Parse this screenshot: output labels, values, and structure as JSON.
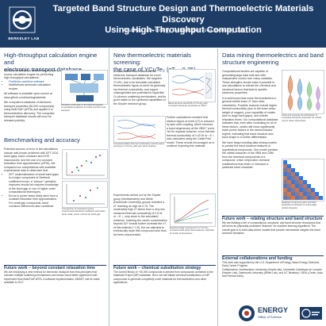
{
  "header": {
    "title_line1": "Targeted Band Structure Design and Thermoelectric Materials Discovery",
    "title_line2": "Using High-Throughput Computation",
    "authors": "Anubhav Jain, Energy Technologies Area, Berkeley Lab",
    "logo_text": "BERKELEY LAB"
  },
  "col1": {
    "heading1_a": "High-throughput calculation engine and",
    "heading1_b": "electronic transport database",
    "intro": "We have developed a state-of-the-art, open-source calculation engine for performing high-throughput calculations:",
    "bullet1": "FireWorks workflow software",
    "bullet2": "MatMethods automatic calculation recipes",
    "avail": "All software is available open-source at www.github.com/hackingmaterials",
    "calc": "We computed a database of electronic transport properties (50,000 compounds) using BoltzTraP (sRTA) and applied it to thermoelectrics discovery. The computed transport database results will soon be released publicly.",
    "fig1_caption": "Workflow schematic of the high-throughput computational pipeline for band structure and transport",
    "heading2": "Benchmarking and accuracy",
    "bench": "Potential sources of error in the calculations include well-known problems with DFT-GGA band gaps, band curvature and DOS inaccuracies, and the use of a constant relaxation time approximation (cRTA). We compared our computations with available experimental data to determine that:",
    "b1": "DFT underestimation of small band gaps is a major component of Seebeck coefficient errors; a \"scissor\" operation improves results but requires knowledge of the band gap or use of higher-order computational techniques.",
    "b2": "Errors in power factor likely stem from a constant relaxation time approximation. For small gap compounds, band curvature differences also contribute.",
    "fig2_caption": "Comparison of computed versus experimental Seebeck coefficient and power factor data; points colored by band gap",
    "future_h": "Future work – beyond constant relaxation time",
    "future_p": "We are employing a new method for electronic transport from first-principles that includes multiple scattering mechanisms and shows much better agreement with experiment than BoltzTraP sRTA. A software implementation, AMSET, will be made available in 2017."
  },
  "col2": {
    "heading_a": "New thermoelectric materials screening:",
    "heading_b": "the case of YCuTe₂ (zT ~ 0.75)",
    "p1": "A collaborative effort examined the electronic transport database for novel thermoelectric candidates. We targeted YCuTe₂ due to its favorable calculated thermoelectric figure-of-merit, its generally low thermal conductivity, and copper chalcogenides and potential for liquid-like Cu phonon scattering mechanisms, and its good match to the synthesis capabilities of the Snyder research group.",
    "cap1": "Band structure and DOS of YCuTe₂ with computed transport properties at 700 K",
    "p2": "Further calculations revealed that electron figure-of-merit (zT) is reduced by spin-orbit coupling, which removes a band degeneracy at the VBM Γ point. Yet Sn dopants however, a low thermal thermal conductivity of 0.43 W m⁻¹ K⁻¹ was calculated using the Cahill-Pohl model. These results encouraged us to continue exploring this material.",
    "cap2": "Computed lattice thermal conductivity and the band structure of YCuTe₂ with spin-orbit coupling",
    "p3": "Experiments carried out by the Snyder group (Northwestern) and White (Dartmouth University) groups revealed a zT reaching as high as 0.75. The moderately high zT stems from a very low measured thermal conductivity of 0.5 W m⁻¹ K⁻¹, very close to the calculated minimum, lowering the carrier concentration beyond 10²⁰ should further increase the zT of this material (~1.5), but our attempts to extrinsically dope this compound have thus far been unsuccessful.",
    "cap3": "Experimentally measured zT of YCuTe₂ compared with other thermoelectric materials at similar temperatures",
    "future_h": "Future work – chemical substitution strategy",
    "future_p": "The current library of ~50,000 compounds is derived from compounds contained in the Materials Project (MP) database. Next, we will initiate chemical substitutions on MP compounds to generate completely novel materials for thermoelectrics and other applications."
  },
  "col3": {
    "heading_a": "Data mining thermoelectrics and band",
    "heading_b": "structure engineering",
    "p1": "Computational studies are capable of generating large data sets and offer independent control over many variables. These strengths should make it possible to use calculations to extract the chemical and structural factors that lead to specific electronic properties.",
    "p2": "It is well known that some thermoelectrics in general exhibit lower zT than other chemistries. Possible reasons include higher thermal conductivity (due to the lower anion weight of oxygen), poor dopability of oxides (due to large band gaps), and shorter relaxation times. Our computational database indicates that, even after controlling for all of these factors, oxides still show significantly lower power factors in the semiconductor regime, indicating that band structure and band shape is a further differentiator.",
    "p3": "We have begun building data mining models to predict the band structure features of hypothetical compounds. One model predicts the orbital character of the VBM and CBM from the chemical components of a compound, which helps tailor chemical substitutions that retain or introduce a particular band character.",
    "fig_cap1": "Violin plot showing the distribution of computed transport properties for oxides versus other chemistries",
    "fig_cap2": "Heatmap of element pairs and their predicted contribution to band-edge orbital character",
    "future_h": "Future work – relating structure and band structure",
    "future_p": "We are building a set of compositional, structural, and band structure descriptors that will serve as physically-motivated \"features\" for machine learning algorithms. The overall goal is to build data-driven models that provide mechanistic insights into band structure formation.",
    "ext_h": "External collaborations and funding",
    "ext_p1": "This work was supported by the U.S. Department of Energy, Basic Energy Sciences, Early Career Program.",
    "ext_p2": "Collaborators: Northwestern University (Snyder lab), Université Catholique de Louvain (Hautier Lab), Dartmouth University (White Lab), and UC Berkeley / LBNL (Ceder, Asta, and Persson labs).",
    "doe_label": "ENERGY",
    "doe_sub": "Office of Science"
  },
  "colors": {
    "header_bg": "#1d3d67",
    "heading": "#1d3d67",
    "accent_red": "#c0392b",
    "accent_blue": "#2c6fb7"
  }
}
